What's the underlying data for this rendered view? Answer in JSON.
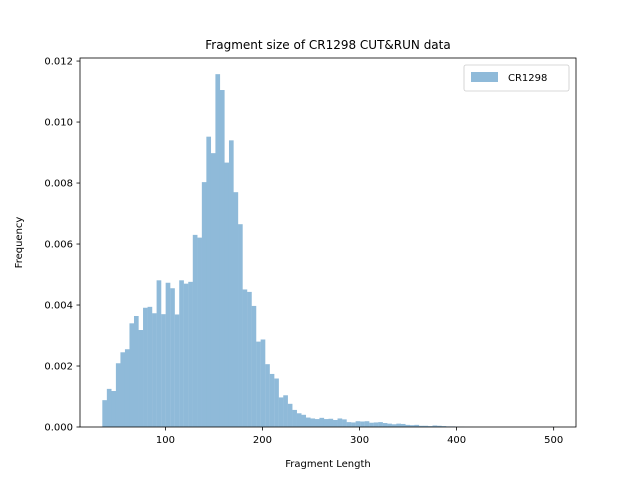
{
  "chart_data": {
    "type": "bar",
    "title": "Fragment size of CR1298 CUT&RUN data",
    "xlabel": "Fragment Length",
    "ylabel": "Frequency",
    "xlim": [
      12,
      523
    ],
    "ylim": [
      0,
      0.0121
    ],
    "x_ticks": [
      100,
      200,
      300,
      400,
      500
    ],
    "y_ticks": [
      0.0,
      0.002,
      0.004,
      0.006,
      0.008,
      0.01,
      0.012
    ],
    "y_tick_labels": [
      "0.000",
      "0.002",
      "0.004",
      "0.006",
      "0.008",
      "0.010",
      "0.012"
    ],
    "x_tick_labels": [
      "100",
      "200",
      "300",
      "400",
      "500"
    ],
    "bin_start": 35,
    "bin_width": 4.66,
    "legend_position": "upper right",
    "series": [
      {
        "name": "CR1298",
        "color": "#8fbad9",
        "values": [
          0.00088,
          0.00125,
          0.00118,
          0.00209,
          0.00245,
          0.00255,
          0.0034,
          0.00364,
          0.00318,
          0.00391,
          0.00394,
          0.00373,
          0.00481,
          0.0037,
          0.00473,
          0.00455,
          0.00369,
          0.00481,
          0.0047,
          0.00476,
          0.0063,
          0.00621,
          0.00803,
          0.00952,
          0.00898,
          0.01157,
          0.01105,
          0.00867,
          0.0094,
          0.0077,
          0.00665,
          0.00451,
          0.00443,
          0.00397,
          0.0028,
          0.00287,
          0.00206,
          0.00174,
          0.00159,
          0.00097,
          0.00104,
          0.00076,
          0.00056,
          0.00045,
          0.0004,
          0.00031,
          0.00028,
          0.00026,
          0.0003,
          0.00026,
          0.00027,
          0.00023,
          0.00028,
          0.00025,
          0.00016,
          0.00015,
          0.00019,
          0.00018,
          0.00019,
          0.00014,
          0.00015,
          0.00016,
          0.00013,
          0.00011,
          9e-05,
          0.00011,
          0.0001,
          7e-05,
          6e-05,
          7e-05,
          4e-05,
          4e-05,
          3e-05,
          5e-05,
          4e-05,
          3e-05,
          2e-05,
          2e-05,
          1e-05,
          1e-05,
          5e-06,
          5e-06,
          3e-06,
          3e-06,
          2e-06,
          2e-06,
          1e-06,
          1e-06,
          1e-06,
          1e-06,
          1e-06,
          1e-06,
          1e-06,
          1e-06,
          1e-06,
          1e-06,
          1e-06,
          1e-06,
          1e-06,
          1e-06
        ]
      }
    ]
  }
}
